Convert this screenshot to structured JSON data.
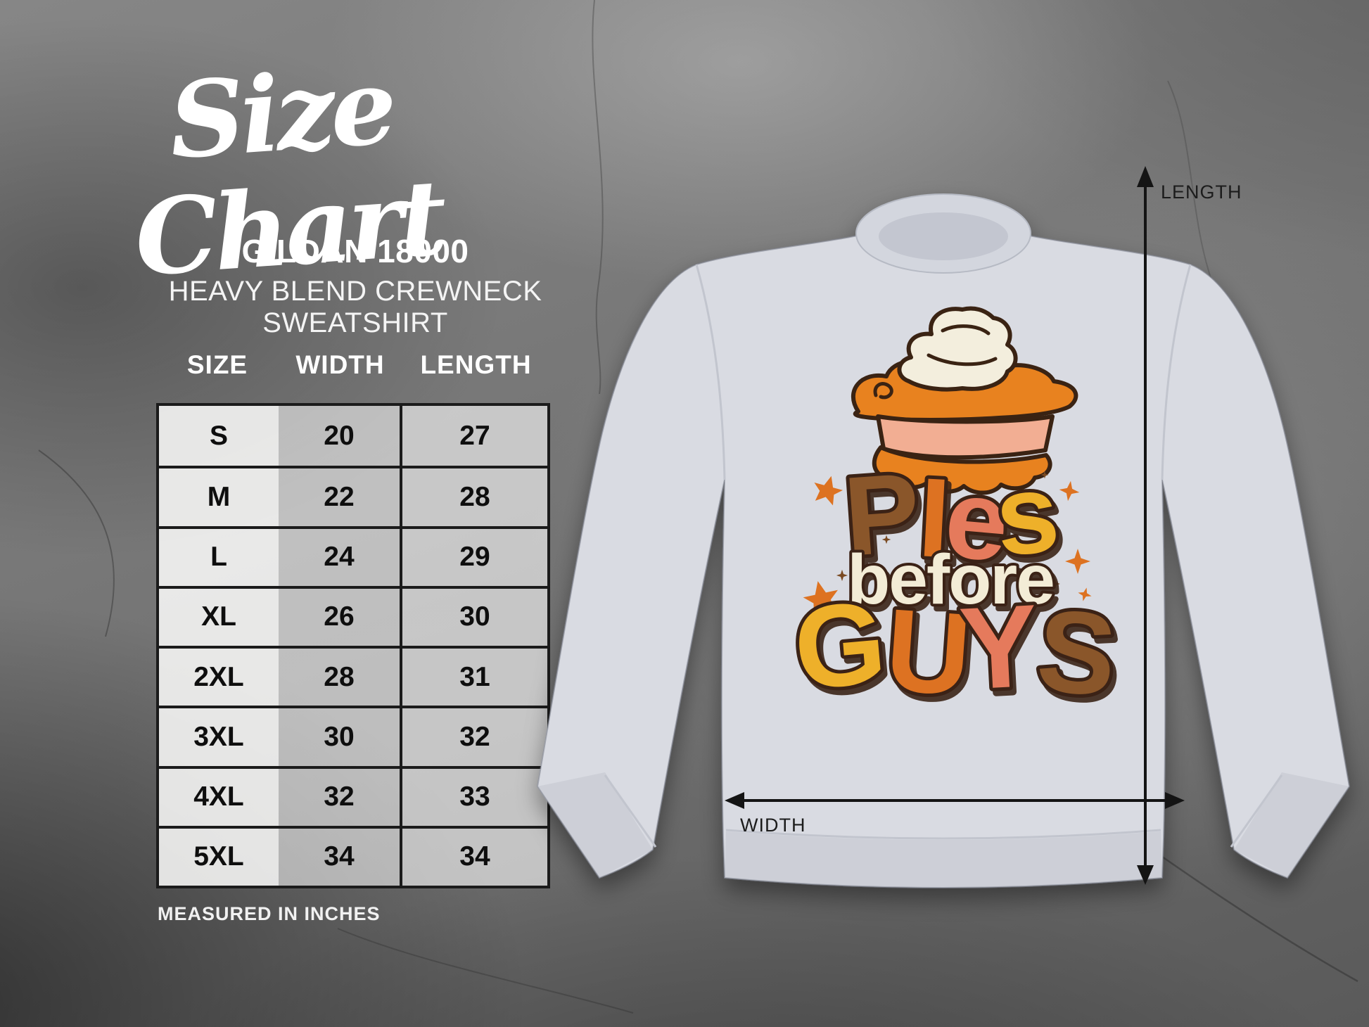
{
  "page": {
    "title": "Size Chart"
  },
  "product": {
    "model": "GILDAN 18000",
    "name": "HEAVY BLEND CREWNECK SWEATSHIRT"
  },
  "size_chart": {
    "columns": [
      "SIZE",
      "WIDTH",
      "LENGTH"
    ],
    "rows": [
      [
        "S",
        "20",
        "27"
      ],
      [
        "M",
        "22",
        "28"
      ],
      [
        "L",
        "24",
        "29"
      ],
      [
        "XL",
        "26",
        "30"
      ],
      [
        "2XL",
        "28",
        "31"
      ],
      [
        "3XL",
        "30",
        "32"
      ],
      [
        "4XL",
        "32",
        "33"
      ],
      [
        "5XL",
        "34",
        "34"
      ]
    ],
    "footnote": "MEASURED IN INCHES"
  },
  "measurement_labels": {
    "length": "LENGTH",
    "width": "WIDTH"
  },
  "shirt": {
    "design_words": [
      {
        "word": "PIes",
        "letters": [
          {
            "ch": "P",
            "color": "#8a5629"
          },
          {
            "ch": "I",
            "color": "#dd7221"
          },
          {
            "ch": "e",
            "color": "#e57a5c"
          },
          {
            "ch": "s",
            "color": "#eeb02b"
          }
        ]
      },
      {
        "word": "before",
        "color": "#f3ecd6"
      },
      {
        "word": "GUYS",
        "letters": [
          {
            "ch": "G",
            "color": "#eeb02b"
          },
          {
            "ch": "U",
            "color": "#dd7221"
          },
          {
            "ch": "Y",
            "color": "#e57a5c"
          },
          {
            "ch": "S",
            "color": "#8a5629"
          }
        ]
      }
    ],
    "colors": {
      "sweatshirt": "#d9dbe2",
      "rib": "#d3d6de",
      "collar_inner": "#c3c6d0",
      "crust": "#e8821f",
      "filling": "#f2ae93",
      "cream": "#f3eedd",
      "outline": "#3a2313",
      "star_orange": "#dd7221",
      "star_brown": "#7a4a22",
      "arrow": "#141414"
    }
  },
  "chart_data": {
    "type": "table",
    "title": "Size Chart",
    "subtitle": "GILDAN 18000 HEAVY BLEND CREWNECK SWEATSHIRT",
    "units": "inches",
    "columns": [
      "SIZE",
      "WIDTH",
      "LENGTH"
    ],
    "rows": [
      [
        "S",
        20,
        27
      ],
      [
        "M",
        22,
        28
      ],
      [
        "L",
        24,
        29
      ],
      [
        "XL",
        26,
        30
      ],
      [
        "2XL",
        28,
        31
      ],
      [
        "3XL",
        30,
        32
      ],
      [
        "4XL",
        32,
        33
      ],
      [
        "5XL",
        34,
        34
      ]
    ],
    "footnote": "MEASURED IN INCHES"
  }
}
